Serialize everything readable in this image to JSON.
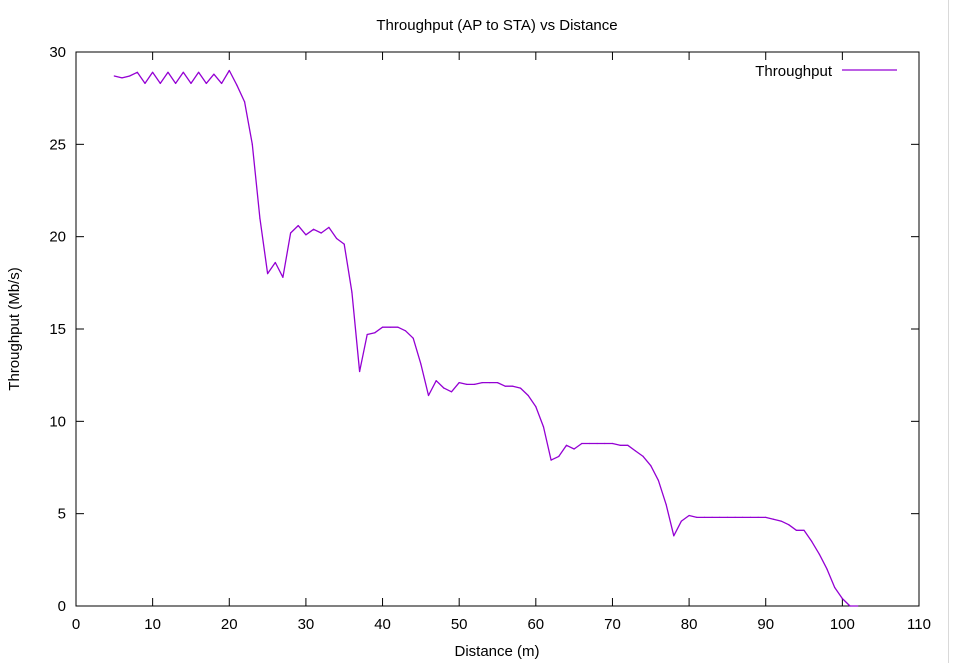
{
  "chart_data": {
    "type": "line",
    "title": "Throughput (AP to STA) vs Distance",
    "xlabel": "Distance (m)",
    "ylabel": "Throughput (Mb/s)",
    "xlim": [
      0,
      110
    ],
    "ylim": [
      0,
      30
    ],
    "xticks": [
      0,
      10,
      20,
      30,
      40,
      50,
      60,
      70,
      80,
      90,
      100,
      110
    ],
    "yticks": [
      0,
      5,
      10,
      15,
      20,
      25,
      30
    ],
    "grid": false,
    "legend_position": "top-right",
    "series": [
      {
        "name": "Throughput",
        "color": "#9400d3",
        "x": [
          5,
          6,
          7,
          8,
          9,
          10,
          11,
          12,
          13,
          14,
          15,
          16,
          17,
          18,
          19,
          20,
          21,
          22,
          23,
          24,
          25,
          26,
          27,
          28,
          29,
          30,
          31,
          32,
          33,
          34,
          35,
          36,
          37,
          38,
          39,
          40,
          41,
          42,
          43,
          44,
          45,
          46,
          47,
          48,
          49,
          50,
          51,
          52,
          53,
          54,
          55,
          56,
          57,
          58,
          59,
          60,
          61,
          62,
          63,
          64,
          65,
          66,
          67,
          68,
          69,
          70,
          71,
          72,
          73,
          74,
          75,
          76,
          77,
          78,
          79,
          80,
          81,
          82,
          83,
          84,
          85,
          86,
          87,
          88,
          89,
          90,
          91,
          92,
          93,
          94,
          95,
          96,
          97,
          98,
          99,
          100,
          101,
          102
        ],
        "y": [
          28.7,
          28.6,
          28.7,
          28.9,
          28.3,
          28.9,
          28.3,
          28.9,
          28.3,
          28.9,
          28.3,
          28.9,
          28.3,
          28.8,
          28.3,
          29.0,
          28.2,
          27.3,
          25.0,
          21.0,
          18.0,
          18.6,
          17.8,
          20.2,
          20.6,
          20.1,
          20.4,
          20.2,
          20.5,
          19.9,
          19.6,
          17.0,
          12.7,
          14.7,
          14.8,
          15.1,
          15.1,
          15.1,
          14.9,
          14.5,
          13.1,
          11.4,
          12.2,
          11.8,
          11.6,
          12.1,
          12.0,
          12.0,
          12.1,
          12.1,
          12.1,
          11.9,
          11.9,
          11.8,
          11.4,
          10.8,
          9.7,
          7.9,
          8.1,
          8.7,
          8.5,
          8.8,
          8.8,
          8.8,
          8.8,
          8.8,
          8.7,
          8.7,
          8.4,
          8.1,
          7.6,
          6.8,
          5.5,
          3.8,
          4.6,
          4.9,
          4.8,
          4.8,
          4.8,
          4.8,
          4.8,
          4.8,
          4.8,
          4.8,
          4.8,
          4.8,
          4.7,
          4.6,
          4.4,
          4.1,
          4.1,
          3.5,
          2.8,
          2.0,
          1.0,
          0.4,
          0.0,
          0.0
        ]
      }
    ]
  }
}
